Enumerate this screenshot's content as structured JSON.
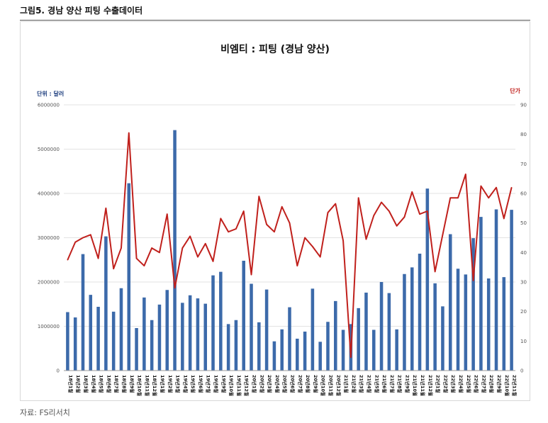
{
  "figure_caption": "그림5. 경남 양산 피팅 수출데이터",
  "source_note": "자료: FS리서치",
  "colors": {
    "bar": "#3c6aaa",
    "line": "#c0201c",
    "right_axis_label": "#c0201c",
    "left_axis_label": "#1f3f7f"
  },
  "chart_data": {
    "type": "bar",
    "title": "비엠티 : 피팅 (경남 양산)",
    "left_axis_label": "단위 : 달러",
    "right_axis_label": "단가",
    "y_left_lim": [
      0,
      6000000
    ],
    "y_left_ticks": [
      "6000000",
      "5000000",
      "4000000",
      "3000000",
      "2000000",
      "1000000",
      "0"
    ],
    "y_right_lim": [
      0,
      90
    ],
    "y_right_ticks": [
      "90",
      "80",
      "70",
      "60",
      "50",
      "40",
      "30",
      "20",
      "10",
      "0"
    ],
    "grid": true,
    "categories": [
      "18년1월",
      "18년2월",
      "18년3월",
      "18년4월",
      "18년5월",
      "18년6월",
      "18년7월",
      "18년8월",
      "18년9월",
      "18년10월",
      "18년11월",
      "18년12월",
      "19년1월",
      "19년2월",
      "19년3월",
      "19년4월",
      "19년5월",
      "19년6월",
      "19년7월",
      "19년8월",
      "19년9월",
      "19년10월",
      "19년11월",
      "19년12월",
      "20년1월",
      "20년2월",
      "20년3월",
      "20년4월",
      "20년5월",
      "20년6월",
      "20년7월",
      "20년8월",
      "20년9월",
      "20년10월",
      "20년11월",
      "20년12월",
      "21년1월",
      "21년2월",
      "21년3월",
      "21년4월",
      "21년5월",
      "21년6월",
      "21년7월",
      "21년8월",
      "21년9월",
      "21년10월",
      "21년11월",
      "21년12월",
      "22년1월",
      "22년2월",
      "22년3월",
      "22년4월",
      "22년5월",
      "22년6월",
      "22년7월",
      "22년8월",
      "22년9월",
      "22년10월",
      "22년11월"
    ],
    "series": [
      {
        "axis": "left",
        "kind": "bar",
        "values": [
          1320000,
          1200000,
          2630000,
          1710000,
          1440000,
          3030000,
          1330000,
          1860000,
          4230000,
          960000,
          1650000,
          1140000,
          1490000,
          1820000,
          5430000,
          1530000,
          1700000,
          1630000,
          1510000,
          2150000,
          2230000,
          1050000,
          1140000,
          2480000,
          1960000,
          1090000,
          1830000,
          660000,
          930000,
          1430000,
          720000,
          880000,
          1850000,
          650000,
          1100000,
          1570000,
          920000,
          1050000,
          1410000,
          1760000,
          920000,
          2000000,
          1750000,
          930000,
          2180000,
          2330000,
          2640000,
          4110000,
          1970000,
          1450000,
          3080000,
          2300000,
          2170000,
          2990000,
          3470000,
          2080000,
          3640000,
          2110000,
          3630000
        ]
      },
      {
        "axis": "right",
        "kind": "line",
        "values": [
          37.5,
          43.5,
          45,
          46,
          38,
          55,
          34.5,
          41.5,
          80.5,
          38,
          35.5,
          41.5,
          40,
          53,
          28,
          41.5,
          45.5,
          38.5,
          43,
          37,
          51.5,
          47,
          48,
          54,
          32.5,
          59,
          49.5,
          47,
          55.5,
          50,
          35.5,
          45,
          42,
          38.5,
          53.5,
          56.5,
          44,
          4.5,
          58.5,
          44.5,
          52.5,
          57,
          54,
          49,
          52,
          60.5,
          53,
          54,
          33.5,
          46,
          58.5,
          58.5,
          66.5,
          30.5,
          62.5,
          58.5,
          62,
          51.5,
          62
        ]
      }
    ]
  }
}
